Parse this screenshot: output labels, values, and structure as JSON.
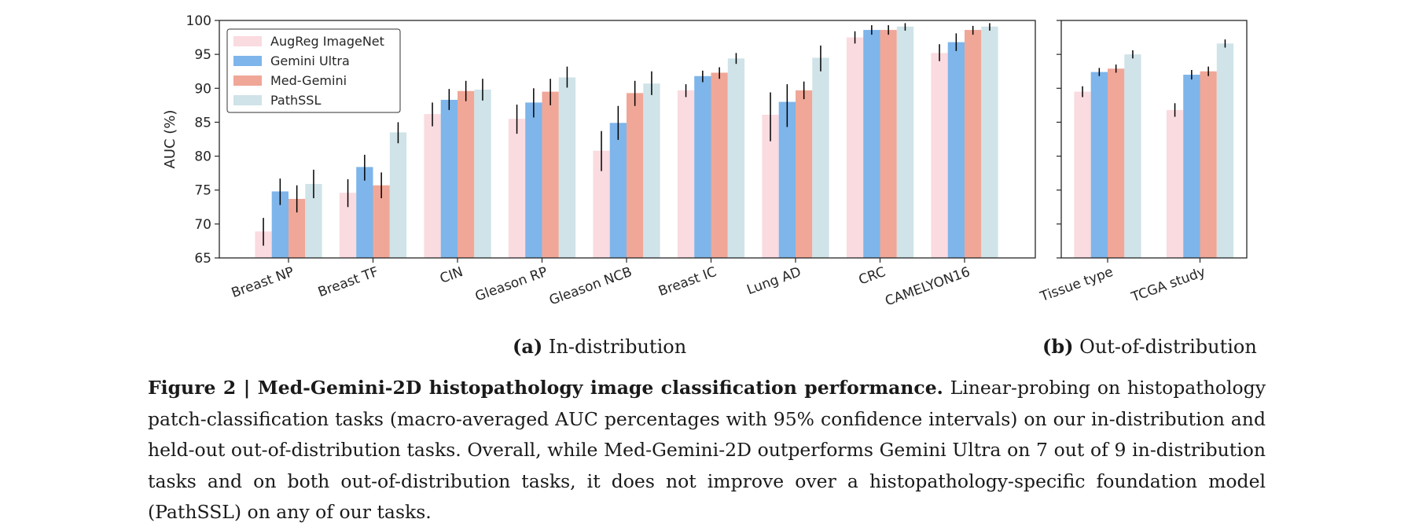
{
  "chart_data": [
    {
      "type": "bar",
      "panel": "(a)",
      "title": "In-distribution",
      "ylabel": "AUC (%)",
      "xlabel": "",
      "ylim": [
        65,
        100
      ],
      "yticks": [
        65,
        70,
        75,
        80,
        85,
        90,
        95,
        100
      ],
      "grid": false,
      "legend_placement": "top-left",
      "categories": [
        "Breast NP",
        "Breast TF",
        "CIN",
        "Gleason RP",
        "Gleason NCB",
        "Breast IC",
        "Lung AD",
        "CRC",
        "CAMELYON16"
      ],
      "series": [
        {
          "name": "AugReg ImageNet",
          "color": "#fadbe0",
          "values": [
            68.9,
            74.6,
            86.2,
            85.5,
            80.8,
            89.7,
            86.1,
            97.5,
            95.2
          ],
          "ci": [
            [
              66.8,
              70.9
            ],
            [
              72.5,
              76.6
            ],
            [
              84.4,
              87.9
            ],
            [
              83.3,
              87.6
            ],
            [
              77.8,
              83.7
            ],
            [
              88.7,
              90.6
            ],
            [
              82.2,
              89.4
            ],
            [
              96.6,
              98.4
            ],
            [
              94.0,
              96.5
            ]
          ]
        },
        {
          "name": "Gemini Ultra",
          "color": "#7eb5ea",
          "values": [
            74.8,
            78.4,
            88.3,
            87.9,
            84.9,
            91.8,
            88.0,
            98.6,
            96.8
          ],
          "ci": [
            [
              72.8,
              76.7
            ],
            [
              76.4,
              80.2
            ],
            [
              86.8,
              89.9
            ],
            [
              85.7,
              90.0
            ],
            [
              82.4,
              87.4
            ],
            [
              90.9,
              92.6
            ],
            [
              84.3,
              90.6
            ],
            [
              97.9,
              99.3
            ],
            [
              95.5,
              98.1
            ]
          ]
        },
        {
          "name": "Med-Gemini",
          "color": "#f0a797",
          "values": [
            73.7,
            75.7,
            89.6,
            89.5,
            89.3,
            92.3,
            89.7,
            98.6,
            98.6
          ],
          "ci": [
            [
              71.7,
              75.7
            ],
            [
              73.8,
              77.6
            ],
            [
              88.1,
              91.1
            ],
            [
              87.5,
              91.4
            ],
            [
              87.4,
              91.1
            ],
            [
              91.4,
              93.1
            ],
            [
              88.4,
              91.0
            ],
            [
              97.9,
              99.3
            ],
            [
              97.9,
              99.2
            ]
          ]
        },
        {
          "name": "PathSSL",
          "color": "#cfe3e8",
          "values": [
            75.9,
            83.5,
            89.8,
            91.6,
            90.7,
            94.4,
            94.5,
            99.1,
            99.1
          ],
          "ci": [
            [
              73.8,
              78.0
            ],
            [
              81.9,
              85.0
            ],
            [
              88.2,
              91.4
            ],
            [
              90.1,
              93.2
            ],
            [
              89.0,
              92.5
            ],
            [
              93.6,
              95.2
            ],
            [
              92.5,
              96.3
            ],
            [
              98.5,
              99.6
            ],
            [
              98.5,
              99.6
            ]
          ]
        }
      ]
    },
    {
      "type": "bar",
      "panel": "(b)",
      "title": "Out-of-distribution",
      "ylabel": "",
      "xlabel": "",
      "ylim": [
        65,
        100
      ],
      "grid": false,
      "categories": [
        "Tissue type",
        "TCGA study"
      ],
      "series": [
        {
          "name": "AugReg ImageNet",
          "color": "#fadbe0",
          "values": [
            89.5,
            86.8
          ],
          "ci": [
            [
              88.7,
              90.3
            ],
            [
              85.8,
              87.8
            ]
          ]
        },
        {
          "name": "Gemini Ultra",
          "color": "#7eb5ea",
          "values": [
            92.4,
            92.0
          ],
          "ci": [
            [
              91.8,
              93.0
            ],
            [
              91.3,
              92.7
            ]
          ]
        },
        {
          "name": "Med-Gemini",
          "color": "#f0a797",
          "values": [
            92.9,
            92.5
          ],
          "ci": [
            [
              92.3,
              93.5
            ],
            [
              91.8,
              93.2
            ]
          ]
        },
        {
          "name": "PathSSL",
          "color": "#cfe3e8",
          "values": [
            95.0,
            96.6
          ],
          "ci": [
            [
              94.4,
              95.6
            ],
            [
              96.0,
              97.2
            ]
          ]
        }
      ]
    }
  ],
  "sublabels": {
    "a_tag": "(a)",
    "a_text": "In-distribution",
    "b_tag": "(b)",
    "b_text": "Out-of-distribution"
  },
  "caption": {
    "label": "Figure 2 | Med-Gemini-2D histopathology image classification performance.",
    "text": "Linear-probing on histopathology patch-classification tasks (macro-averaged AUC percentages with 95% confidence intervals) on our in-distribution and held-out out-of-distribution tasks. Overall, while Med-Gemini-2D outperforms Gemini Ultra on 7 out of 9 in-distribution tasks and on both out-of-distribution tasks, it does not improve over a histopathology-specific foundation model (PathSSL) on any of our tasks."
  }
}
